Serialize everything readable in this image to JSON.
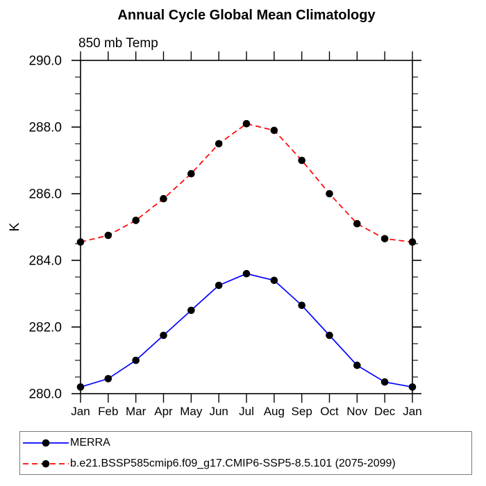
{
  "chart_data": {
    "type": "line",
    "title": "Annual Cycle Global Mean Climatology",
    "subtitle": "850 mb Temp",
    "ylabel": "K",
    "xlabel": "",
    "x_categories": [
      "Jan",
      "Feb",
      "Mar",
      "Apr",
      "May",
      "Jun",
      "Jul",
      "Aug",
      "Sep",
      "Oct",
      "Nov",
      "Dec",
      "Jan"
    ],
    "ylim": [
      280.0,
      290.0
    ],
    "ytick_labels": [
      "290.0",
      "288.0",
      "286.0",
      "284.0",
      "282.0",
      "280.0"
    ],
    "ytick_values": [
      290.0,
      288.0,
      286.0,
      284.0,
      282.0,
      280.0
    ],
    "yminor_interval": 0.5,
    "grid": false,
    "frame": "full-box-outward-ticks",
    "legend_position": "bottom-left-box",
    "axis_color": "#000000",
    "marker": "filled-circle",
    "marker_color": "#000000",
    "series": [
      {
        "name": "MERRA",
        "color": "#0000ff",
        "style": "solid",
        "values": [
          280.2,
          280.45,
          281.0,
          281.75,
          282.5,
          283.25,
          283.6,
          283.4,
          282.65,
          281.75,
          280.85,
          280.35,
          280.2
        ]
      },
      {
        "name": "b.e21.BSSP585cmip6.f09_g17.CMIP6-SSP5-8.5.101 (2075-2099)",
        "color": "#ff0000",
        "style": "dashed",
        "values": [
          284.55,
          284.75,
          285.2,
          285.85,
          286.6,
          287.5,
          288.1,
          287.9,
          287.0,
          286.0,
          285.1,
          284.65,
          284.55
        ]
      }
    ]
  }
}
